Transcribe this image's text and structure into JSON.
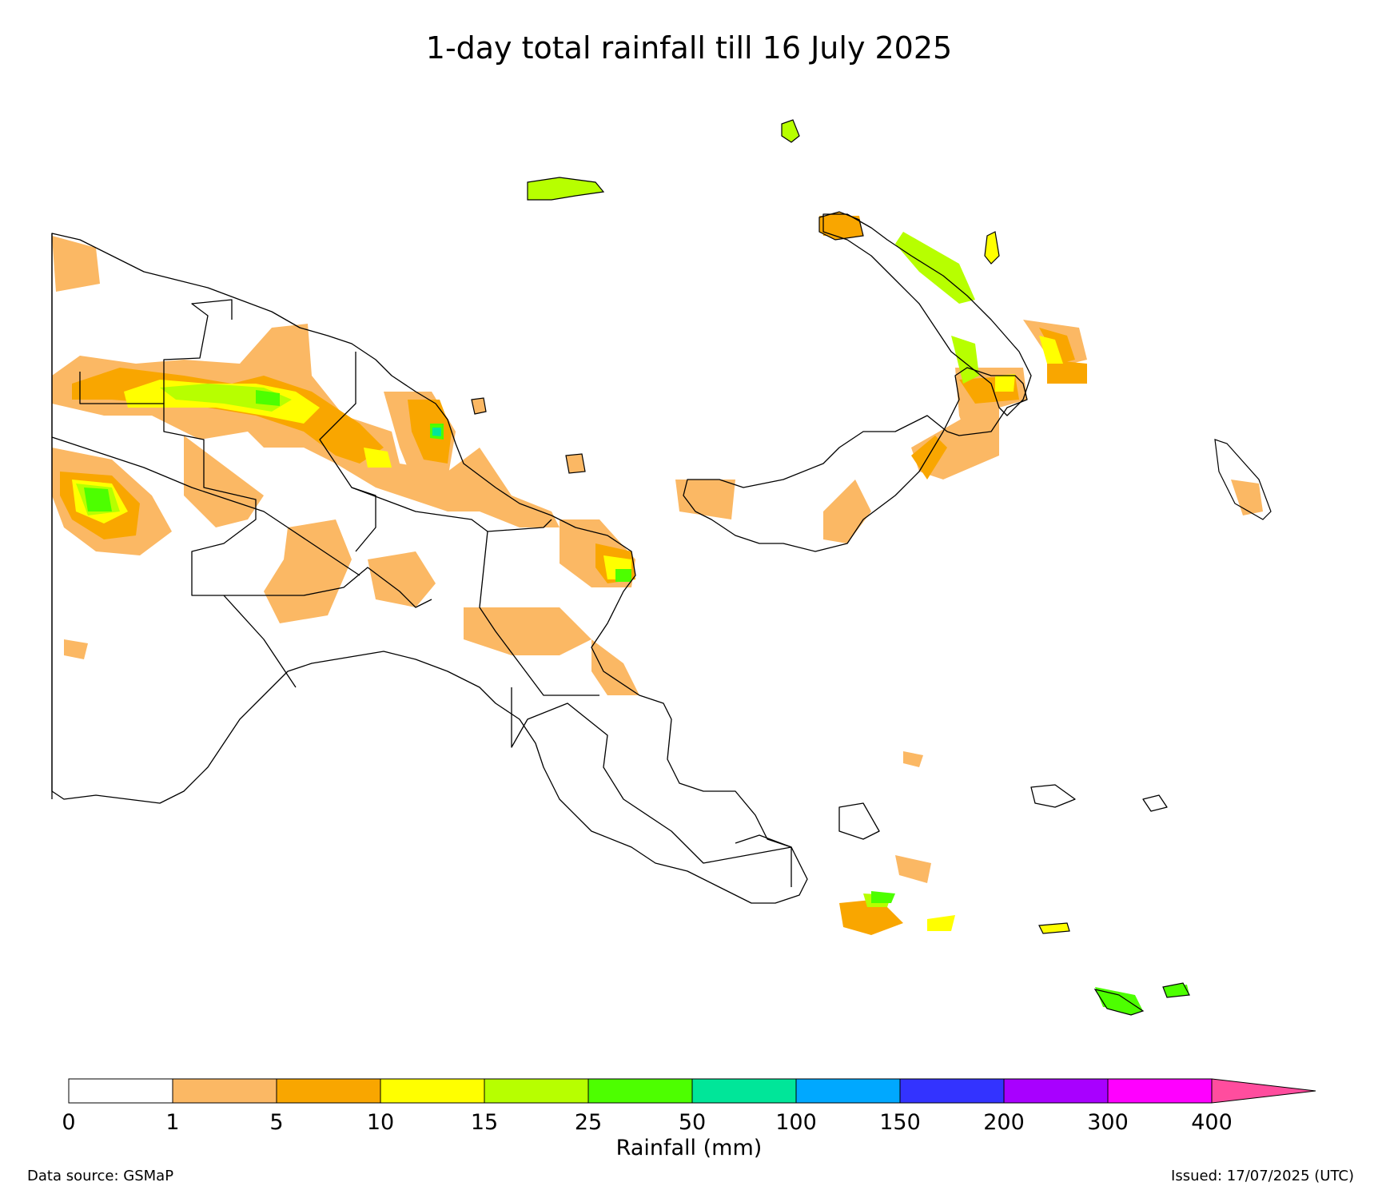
{
  "title": "1-day total rainfall till 16 July 2025",
  "legend": {
    "axis_label": "Rainfall (mm)",
    "ticks": [
      "0",
      "1",
      "5",
      "10",
      "15",
      "25",
      "50",
      "100",
      "150",
      "200",
      "300",
      "400"
    ],
    "colors": [
      "#ffffff",
      "#fbb864",
      "#f9a600",
      "#ffff00",
      "#b7ff00",
      "#4dff00",
      "#00e699",
      "#00a8ff",
      "#3333ff",
      "#a800ff",
      "#ff00ff",
      "#ff4d9e"
    ]
  },
  "source_text": "Data source: GSMaP",
  "issued_text": "Issued: 17/07/2025 (UTC)"
}
